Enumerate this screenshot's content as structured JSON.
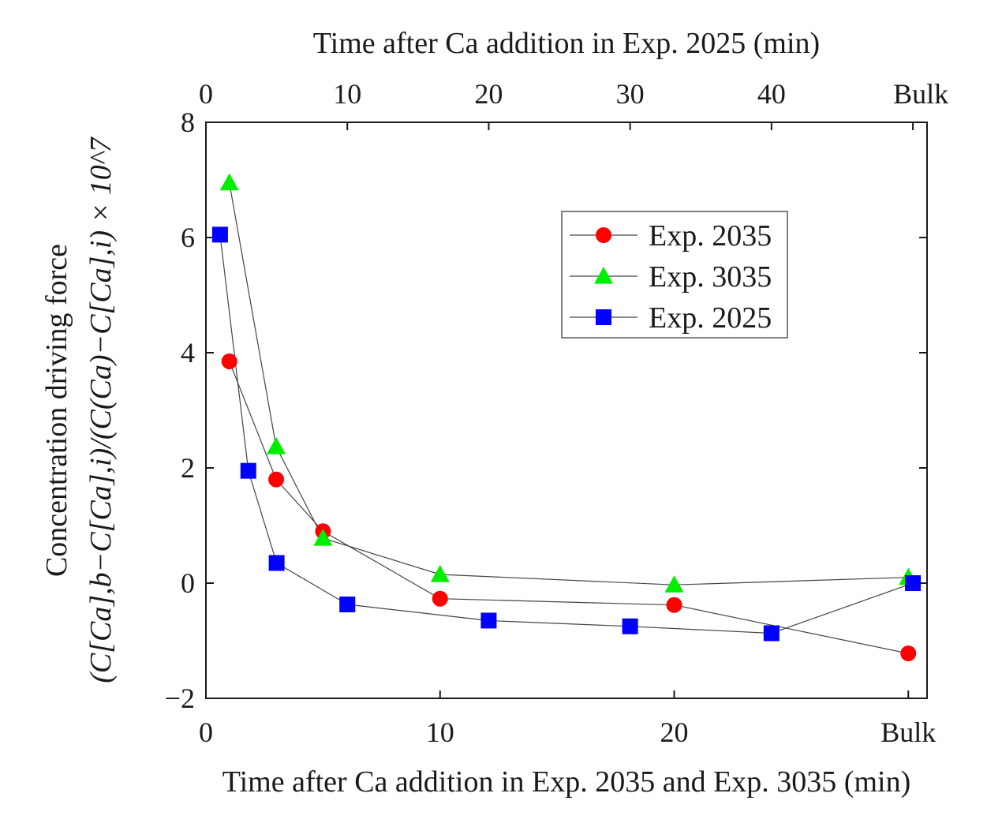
{
  "chart_data": {
    "type": "scatter",
    "title": "",
    "xlabel": "Time after Ca addition in Exp. 2035 and Exp. 3035 (min)",
    "x2label": "Time after Ca addition in Exp. 2025 (min)",
    "ylabel_line1": "Concentration driving force",
    "ylabel_line2": "(C[Ca],b−C[Ca],i)/(C(Ca)−C[Ca],i) × 10^7",
    "ylim": [
      -2,
      8
    ],
    "yticks": [
      -2,
      0,
      2,
      4,
      6,
      8
    ],
    "ytick_labels": [
      "−2",
      "0",
      "2",
      "4",
      "6",
      "8"
    ],
    "xlim": [
      0,
      30.8
    ],
    "xticks": [
      0,
      10,
      20,
      30
    ],
    "xtick_labels": [
      "0",
      "10",
      "20",
      "Bulk"
    ],
    "x2lim": [
      0,
      51
    ],
    "x2ticks": [
      0,
      10,
      20,
      30,
      40,
      50
    ],
    "x2tick_labels": [
      "0",
      "10",
      "20",
      "30",
      "40",
      "Bulk"
    ],
    "legend_position": "upper-right",
    "series": [
      {
        "name": "Exp. 2035",
        "axis": "bottom",
        "marker": "circle",
        "color": "#ff0000",
        "x": [
          1,
          3,
          5,
          10,
          20,
          30
        ],
        "y": [
          3.85,
          1.8,
          0.9,
          -0.27,
          -0.38,
          -1.22
        ]
      },
      {
        "name": "Exp. 3035",
        "axis": "bottom",
        "marker": "triangle",
        "color": "#00ee00",
        "x": [
          1,
          3,
          5,
          10,
          20,
          30
        ],
        "y": [
          6.95,
          2.37,
          0.78,
          0.15,
          -0.03,
          0.1
        ]
      },
      {
        "name": "Exp. 2025",
        "axis": "top",
        "marker": "square",
        "color": "#0000ff",
        "x": [
          1,
          3,
          5,
          10,
          20,
          30,
          40,
          50
        ],
        "y": [
          6.05,
          1.95,
          0.35,
          -0.37,
          -0.65,
          -0.75,
          -0.87,
          0.0
        ]
      }
    ]
  }
}
